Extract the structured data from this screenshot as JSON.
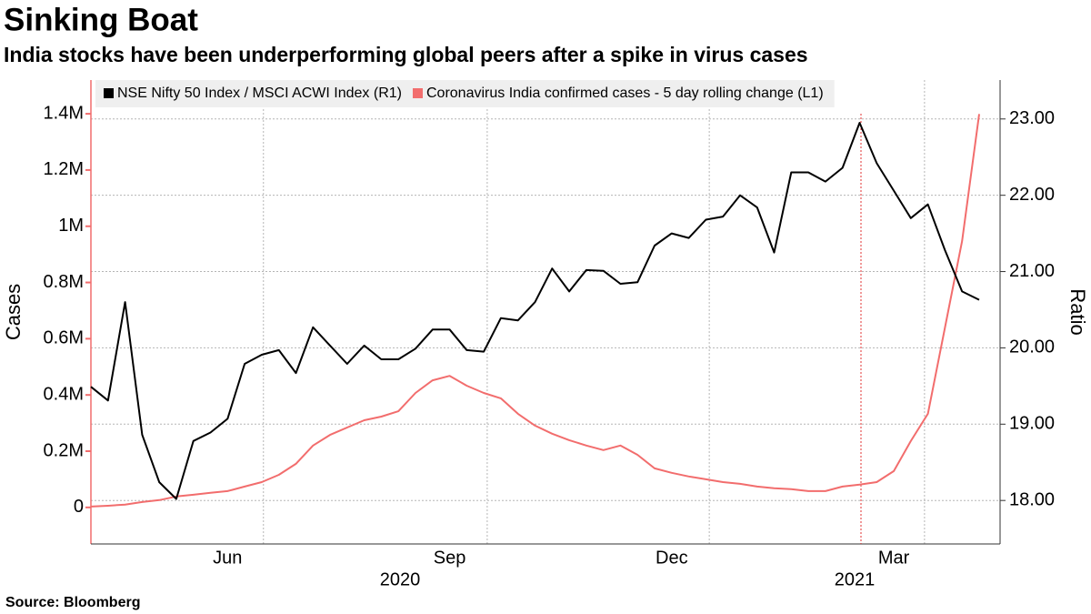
{
  "chart_data": {
    "type": "line",
    "title": "Sinking Boat",
    "subtitle": "India stocks have been underperforming global peers after a spike in virus cases",
    "source": "Source: Bloomberg",
    "y_label": "Cases",
    "y2_label": "Ratio",
    "categories": [
      null,
      null,
      null,
      null,
      null,
      null,
      null,
      null,
      "Jun",
      null,
      null,
      null,
      null,
      null,
      null,
      null,
      null,
      null,
      null,
      null,
      null,
      "Sep",
      null,
      null,
      null,
      null,
      null,
      null,
      null,
      null,
      null,
      null,
      null,
      null,
      "Dec",
      null,
      null,
      null,
      null,
      null,
      null,
      null,
      null,
      null,
      null,
      null,
      null,
      "Mar",
      null,
      null,
      null,
      null,
      null
    ],
    "x_group_labels": [
      "2020",
      "2021"
    ],
    "series": [
      {
        "name": "NSE Nifty 50 Index / MSCI ACWI Index (R1)",
        "color": "#000000",
        "axis": "y2",
        "values": [
          19.49,
          19.31,
          20.6,
          18.86,
          18.24,
          18.02,
          18.78,
          18.89,
          19.07,
          19.79,
          19.91,
          19.97,
          19.67,
          20.27,
          20.03,
          19.79,
          20.03,
          19.85,
          19.85,
          19.99,
          20.24,
          20.24,
          19.97,
          19.95,
          20.39,
          20.36,
          20.6,
          21.04,
          20.74,
          21.02,
          21.01,
          20.84,
          20.86,
          21.34,
          21.5,
          21.44,
          21.68,
          21.72,
          22.0,
          21.84,
          21.25,
          22.3,
          22.3,
          22.18,
          22.36,
          22.95,
          22.42,
          22.06,
          21.7,
          21.88,
          21.28,
          20.74,
          20.63
        ]
      },
      {
        "name": "Coronavirus India confirmed cases - 5 day rolling change (L1)",
        "color": "#f26d6d",
        "axis": "y",
        "values": [
          3000,
          6000,
          10000,
          19000,
          26000,
          39000,
          45000,
          52000,
          58000,
          74000,
          90000,
          116000,
          155000,
          220000,
          258000,
          284000,
          310000,
          323000,
          342000,
          407000,
          452000,
          468000,
          433000,
          407000,
          388000,
          333000,
          291000,
          262000,
          239000,
          220000,
          204000,
          220000,
          187000,
          139000,
          123000,
          110000,
          100000,
          90000,
          84000,
          74000,
          68000,
          65000,
          58000,
          58000,
          74000,
          81000,
          90000,
          129000,
          236000,
          333000,
          640000,
          947000,
          1399000
        ]
      }
    ],
    "ylim": [
      -130000,
      1520000
    ],
    "yticks": [
      0,
      {
        "value": 200000,
        "label": "0.2M"
      },
      {
        "value": 400000,
        "label": "0.4M"
      },
      {
        "value": 600000,
        "label": "0.6M"
      },
      {
        "value": 800000,
        "label": "0.8M"
      },
      {
        "value": 1000000,
        "label": "1M"
      },
      {
        "value": 1200000,
        "label": "1.2M"
      },
      {
        "value": 1400000,
        "label": "1.4M"
      }
    ],
    "y2lim": [
      17.43,
      23.51
    ],
    "y2ticks": [
      {
        "value": 18,
        "label": "18.00"
      },
      {
        "value": 19,
        "label": "19.00"
      },
      {
        "value": 20,
        "label": "20.00"
      },
      {
        "value": 21,
        "label": "21.00"
      },
      {
        "value": 22,
        "label": "22.00"
      },
      {
        "value": 23,
        "label": "23.00"
      }
    ],
    "grid": true,
    "legend": "top-left"
  }
}
